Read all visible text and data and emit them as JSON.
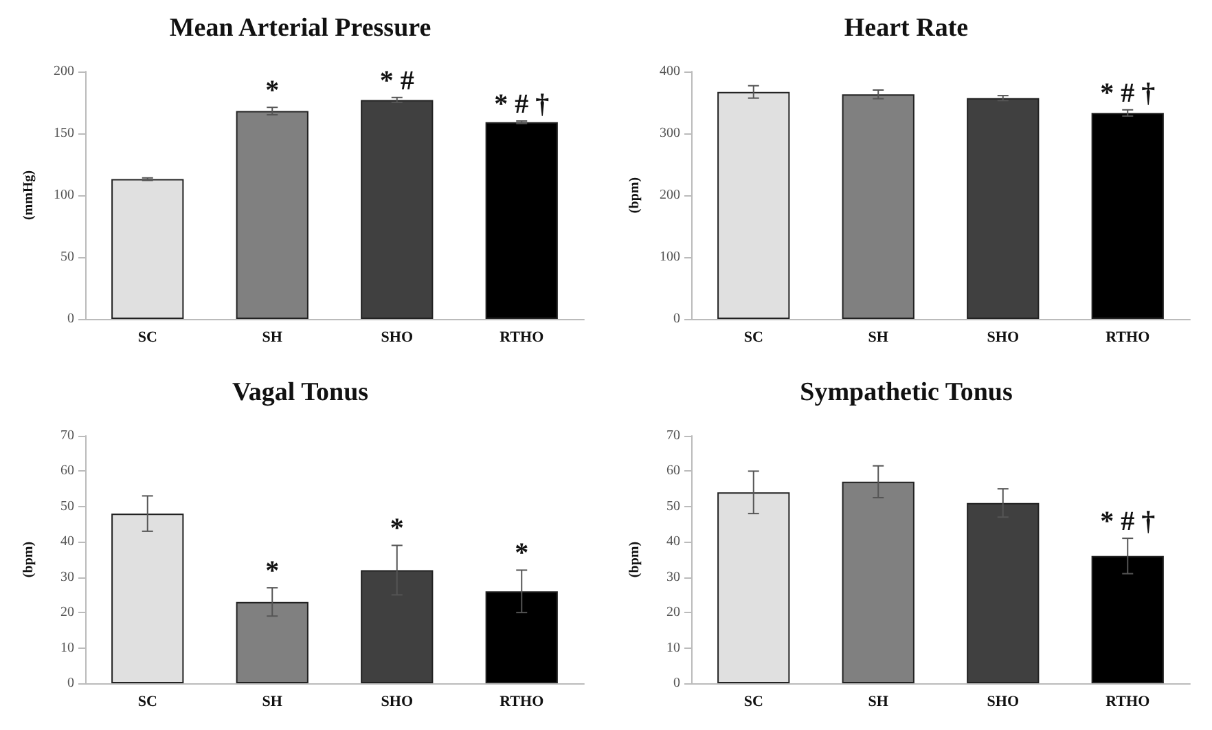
{
  "chart_data": [
    {
      "type": "bar",
      "title": "Mean Arterial Pressure",
      "ylabel": "(mmHg)",
      "categories": [
        "SC",
        "SH",
        "SHO",
        "RTHO"
      ],
      "values": [
        113,
        168,
        177,
        159
      ],
      "errors": [
        1,
        3,
        2,
        1
      ],
      "colors": [
        "#e0e0e0",
        "#808080",
        "#404040",
        "#000000"
      ],
      "ylim": [
        0,
        200
      ],
      "yticks": [
        0,
        50,
        100,
        150,
        200
      ],
      "grid": false,
      "annotations": [
        {
          "text": "*",
          "x": "SH",
          "y": 168
        },
        {
          "text": "* #",
          "x": "SHO",
          "y": 177
        },
        {
          "text": "* # †",
          "x": "RTHO",
          "y": 159
        }
      ]
    },
    {
      "type": "bar",
      "title": "Heart Rate",
      "ylabel": "(bpm)",
      "categories": [
        "SC",
        "SH",
        "SHO",
        "RTHO"
      ],
      "values": [
        367,
        363,
        357,
        333
      ],
      "errors": [
        10,
        7,
        4,
        5
      ],
      "colors": [
        "#e0e0e0",
        "#808080",
        "#404040",
        "#000000"
      ],
      "ylim": [
        0,
        400
      ],
      "yticks": [
        0,
        100,
        200,
        300,
        400
      ],
      "grid": false,
      "annotations": [
        {
          "text": "* # †",
          "x": "RTHO",
          "y": 333
        }
      ]
    },
    {
      "type": "bar",
      "title": "Vagal Tonus",
      "ylabel": "(bpm)",
      "categories": [
        "SC",
        "SH",
        "SHO",
        "RTHO"
      ],
      "values": [
        48,
        23,
        32,
        26
      ],
      "errors": [
        5,
        4,
        7,
        6
      ],
      "colors": [
        "#e0e0e0",
        "#808080",
        "#404040",
        "#000000"
      ],
      "ylim": [
        0,
        70
      ],
      "yticks": [
        0,
        10,
        20,
        30,
        40,
        50,
        60,
        70
      ],
      "grid": false,
      "annotations": [
        {
          "text": "*",
          "x": "SH",
          "y": 23
        },
        {
          "text": "*",
          "x": "SHO",
          "y": 32
        },
        {
          "text": "*",
          "x": "RTHO",
          "y": 26
        }
      ]
    },
    {
      "type": "bar",
      "title": "Sympathetic Tonus",
      "ylabel": "(bpm)",
      "categories": [
        "SC",
        "SH",
        "SHO",
        "RTHO"
      ],
      "values": [
        54,
        57,
        51,
        36
      ],
      "errors": [
        6,
        4.5,
        4,
        5
      ],
      "colors": [
        "#e0e0e0",
        "#808080",
        "#404040",
        "#000000"
      ],
      "ylim": [
        0,
        70
      ],
      "yticks": [
        0,
        10,
        20,
        30,
        40,
        50,
        60,
        70
      ],
      "grid": false,
      "annotations": [
        {
          "text": "* # †",
          "x": "RTHO",
          "y": 36
        }
      ]
    }
  ]
}
